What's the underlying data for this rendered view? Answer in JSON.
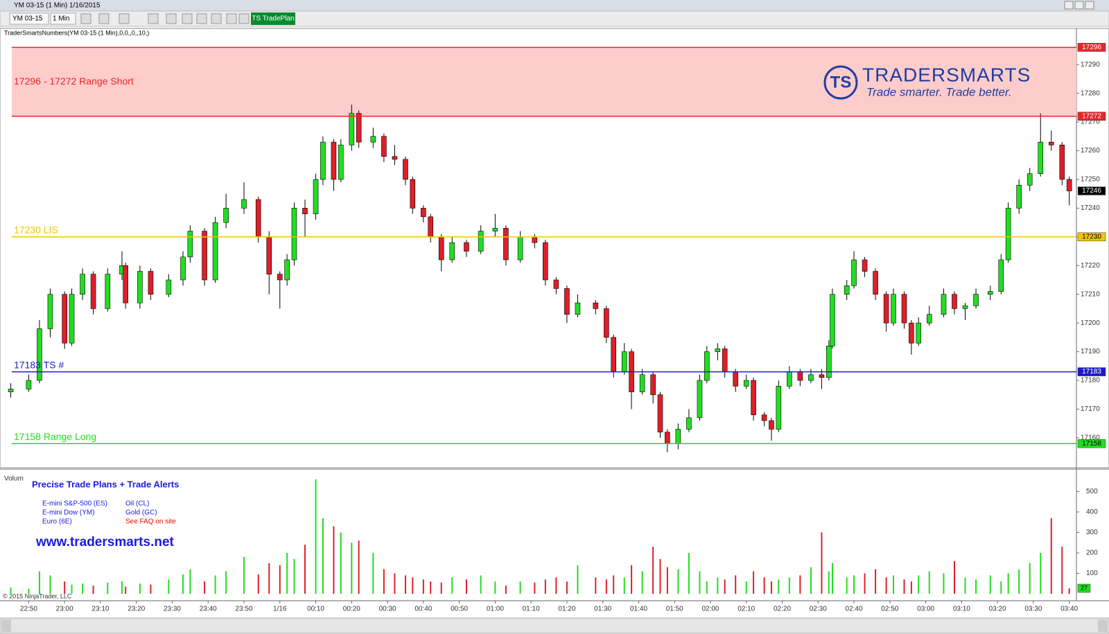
{
  "window": {
    "title": "YM 03-15 (1 Min)  1/16/2015"
  },
  "toolbar": {
    "instrument": "YM 03-15",
    "interval": "1 Min",
    "plan_button": "TS TradePlan"
  },
  "indicator_label": "TraderSmartsNumbers(YM 03-15 (1 Min),0,0,,0,,10,)",
  "logo": {
    "mark": "TS",
    "name": "TRADERSMARTS",
    "tagline": "Trade smarter. Trade better."
  },
  "promo": {
    "heading": "Precise Trade Plans + Trade Alerts",
    "items": [
      "E-mini S&P-500 (ES)",
      "E-mini Dow (YM)",
      "Euro (6E)",
      "Oil (CL)",
      "Gold (GC)",
      "See FAQ on site"
    ],
    "url": "www.tradersmarts.net"
  },
  "copyright": "© 2015 NinjaTrader, LLC",
  "chart_data": {
    "type": "candlestick",
    "up_color": "#22dd22",
    "down_color": "#dd1f2a",
    "candles": [
      [
        0,
        17176,
        17179,
        17174,
        17177
      ],
      [
        5,
        17177,
        17182,
        17176,
        17180
      ],
      [
        8,
        17180,
        17201,
        17179,
        17198
      ],
      [
        11,
        17198,
        17212,
        17195,
        17210
      ],
      [
        15,
        17210,
        17211,
        17191,
        17193
      ],
      [
        17,
        17193,
        17212,
        17192,
        17210
      ],
      [
        20,
        17210,
        17219,
        17208,
        17217
      ],
      [
        23,
        17217,
        17218,
        17203,
        17205
      ],
      [
        27,
        17205,
        17219,
        17204,
        17217
      ],
      [
        31,
        17217,
        17225,
        17215,
        17220
      ],
      [
        32,
        17220,
        17221,
        17205,
        17207
      ],
      [
        36,
        17207,
        17220,
        17205,
        17218
      ],
      [
        39,
        17218,
        17219,
        17208,
        17210
      ],
      [
        44,
        17210,
        17217,
        17209,
        17215
      ],
      [
        48,
        17215,
        17225,
        17213,
        17223
      ],
      [
        50,
        17223,
        17234,
        17221,
        17232
      ],
      [
        54,
        17232,
        17233,
        17213,
        17215
      ],
      [
        57,
        17215,
        17237,
        17214,
        17235
      ],
      [
        60,
        17235,
        17245,
        17233,
        17240
      ],
      [
        65,
        17240,
        17249,
        17238,
        17243
      ],
      [
        69,
        17243,
        17244,
        17228,
        17230
      ],
      [
        72,
        17230,
        17232,
        17210,
        17217
      ],
      [
        75,
        17217,
        17218,
        17205,
        17215
      ],
      [
        77,
        17215,
        17224,
        17213,
        17222
      ],
      [
        79,
        17222,
        17242,
        17220,
        17240
      ],
      [
        82,
        17240,
        17243,
        17230,
        17238
      ],
      [
        85,
        17238,
        17252,
        17236,
        17250
      ],
      [
        87,
        17250,
        17265,
        17248,
        17263
      ],
      [
        90,
        17263,
        17264,
        17246,
        17250
      ],
      [
        92,
        17250,
        17264,
        17249,
        17262
      ],
      [
        95,
        17262,
        17276,
        17260,
        17273
      ],
      [
        97,
        17273,
        17274,
        17261,
        17263
      ],
      [
        101,
        17263,
        17268,
        17261,
        17265
      ],
      [
        104,
        17265,
        17266,
        17256,
        17258
      ],
      [
        107,
        17258,
        17262,
        17255,
        17257
      ],
      [
        110,
        17257,
        17258,
        17248,
        17250
      ],
      [
        112,
        17250,
        17251,
        17238,
        17240
      ],
      [
        115,
        17240,
        17241,
        17235,
        17237
      ],
      [
        117,
        17237,
        17238,
        17228,
        17230
      ],
      [
        120,
        17230,
        17231,
        17218,
        17222
      ],
      [
        123,
        17222,
        17230,
        17221,
        17228
      ],
      [
        127,
        17228,
        17229,
        17223,
        17225
      ],
      [
        131,
        17225,
        17234,
        17224,
        17232
      ],
      [
        135,
        17232,
        17238,
        17230,
        17233
      ],
      [
        138,
        17233,
        17234,
        17220,
        17222
      ],
      [
        142,
        17222,
        17232,
        17221,
        17230
      ],
      [
        146,
        17230,
        17231,
        17226,
        17228
      ],
      [
        149,
        17228,
        17229,
        17213,
        17215
      ],
      [
        152,
        17215,
        17216,
        17210,
        17212
      ],
      [
        155,
        17212,
        17213,
        17200,
        17203
      ],
      [
        158,
        17203,
        17210,
        17202,
        17207
      ],
      [
        163,
        17207,
        17208,
        17203,
        17205
      ],
      [
        166,
        17205,
        17206,
        17193,
        17195
      ],
      [
        168,
        17195,
        17196,
        17181,
        17183
      ],
      [
        171,
        17183,
        17193,
        17182,
        17190
      ],
      [
        173,
        17190,
        17191,
        17170,
        17176
      ],
      [
        176,
        17176,
        17184,
        17175,
        17182
      ],
      [
        179,
        17182,
        17183,
        17172,
        17175
      ],
      [
        181,
        17175,
        17176,
        17160,
        17162
      ],
      [
        183,
        17162,
        17163,
        17155,
        17158
      ],
      [
        186,
        17158,
        17165,
        17156,
        17163
      ],
      [
        189,
        17163,
        17170,
        17162,
        17167
      ],
      [
        192,
        17167,
        17182,
        17166,
        17180
      ],
      [
        194,
        17180,
        17192,
        17179,
        17190
      ],
      [
        197,
        17190,
        17193,
        17187,
        17191
      ],
      [
        199,
        17191,
        17192,
        17181,
        17183
      ],
      [
        202,
        17183,
        17184,
        17176,
        17178
      ],
      [
        205,
        17178,
        17182,
        17177,
        17180
      ],
      [
        207,
        17180,
        17181,
        17166,
        17168
      ],
      [
        210,
        17168,
        17169,
        17164,
        17166
      ],
      [
        212,
        17166,
        17167,
        17159,
        17163
      ],
      [
        214,
        17163,
        17180,
        17162,
        17178
      ],
      [
        217,
        17178,
        17185,
        17177,
        17183
      ],
      [
        220,
        17183,
        17184,
        17178,
        17180
      ],
      [
        223,
        17180,
        17184,
        17179,
        17182
      ],
      [
        226,
        17182,
        17184,
        17177,
        17181
      ],
      [
        228,
        17181,
        17194,
        17180,
        17192
      ],
      [
        229,
        17192,
        17212,
        17191,
        17210
      ],
      [
        233,
        17210,
        17215,
        17208,
        17213
      ],
      [
        235,
        17213,
        17225,
        17212,
        17222
      ],
      [
        238,
        17222,
        17223,
        17216,
        17218
      ],
      [
        241,
        17218,
        17219,
        17208,
        17210
      ],
      [
        244,
        17210,
        17211,
        17197,
        17200
      ],
      [
        246,
        17200,
        17212,
        17199,
        17210
      ],
      [
        249,
        17210,
        17211,
        17198,
        17200
      ],
      [
        251,
        17200,
        17201,
        17189,
        17193
      ],
      [
        253,
        17193,
        17202,
        17192,
        17200
      ],
      [
        256,
        17200,
        17206,
        17199,
        17203
      ],
      [
        260,
        17203,
        17212,
        17202,
        17210
      ],
      [
        263,
        17210,
        17211,
        17203,
        17205
      ],
      [
        266,
        17205,
        17207,
        17201,
        17206
      ],
      [
        269,
        17206,
        17212,
        17205,
        17210
      ],
      [
        273,
        17210,
        17213,
        17208,
        17211
      ],
      [
        276,
        17211,
        17224,
        17210,
        17222
      ],
      [
        278,
        17222,
        17242,
        17221,
        17240
      ],
      [
        281,
        17240,
        17250,
        17238,
        17248
      ],
      [
        284,
        17248,
        17254,
        17246,
        17252
      ],
      [
        287,
        17252,
        17273,
        17251,
        17263
      ],
      [
        290,
        17263,
        17267,
        17260,
        17262
      ],
      [
        293,
        17262,
        17263,
        17248,
        17250
      ],
      [
        295,
        17250,
        17251,
        17241,
        17246
      ]
    ],
    "volume_label": "Volum",
    "volume": [
      30,
      25,
      110,
      90,
      60,
      45,
      50,
      40,
      55,
      60,
      35,
      50,
      45,
      70,
      95,
      120,
      60,
      90,
      110,
      180,
      95,
      150,
      140,
      200,
      170,
      240,
      560,
      370,
      330,
      300,
      250,
      260,
      200,
      120,
      100,
      90,
      80,
      70,
      60,
      55,
      80,
      70,
      90,
      60,
      40,
      60,
      55,
      70,
      80,
      60,
      140,
      80,
      70,
      90,
      80,
      140,
      110,
      230,
      170,
      130,
      120,
      200,
      110,
      60,
      80,
      70,
      90,
      60,
      110,
      80,
      60,
      70,
      80,
      90,
      130,
      300,
      110,
      150,
      80,
      90,
      100,
      120,
      80,
      90,
      70,
      60,
      90,
      110,
      100,
      160,
      80,
      70,
      90,
      60,
      100,
      120,
      150,
      200,
      370,
      230,
      27
    ],
    "levels": [
      {
        "value": 17296,
        "color": "#e8262a"
      },
      {
        "value": 17272,
        "color": "#e8262a",
        "label": "17296 - 17272 Range Short"
      },
      {
        "value": 17230,
        "color": "#f2c500",
        "label": "17230 LIS"
      },
      {
        "value": 17183,
        "color": "#1c1ccc",
        "label": "17183 TS #"
      },
      {
        "value": 17158,
        "color": "#22dd22",
        "label": "17158 Range Long"
      }
    ],
    "zone_color": "#ffcccc",
    "xlim": [
      -3,
      297
    ],
    "xticks": [
      {
        "value": 5,
        "label": "22:50"
      },
      {
        "value": 15,
        "label": "23:00"
      },
      {
        "value": 25,
        "label": "23:10"
      },
      {
        "value": 35,
        "label": "23:20"
      },
      {
        "value": 45,
        "label": "23:30"
      },
      {
        "value": 55,
        "label": "23:40"
      },
      {
        "value": 65,
        "label": "23:50"
      },
      {
        "value": 75,
        "label": "1/16"
      },
      {
        "value": 85,
        "label": "00:10"
      },
      {
        "value": 95,
        "label": "00:20"
      },
      {
        "value": 105,
        "label": "00:30"
      },
      {
        "value": 115,
        "label": "00:40"
      },
      {
        "value": 125,
        "label": "00:50"
      },
      {
        "value": 135,
        "label": "01:00"
      },
      {
        "value": 145,
        "label": "01:10"
      },
      {
        "value": 155,
        "label": "01:20"
      },
      {
        "value": 165,
        "label": "01:30"
      },
      {
        "value": 175,
        "label": "01:40"
      },
      {
        "value": 185,
        "label": "01:50"
      },
      {
        "value": 195,
        "label": "02:00"
      },
      {
        "value": 205,
        "label": "02:10"
      },
      {
        "value": 215,
        "label": "02:20"
      },
      {
        "value": 225,
        "label": "02:30"
      },
      {
        "value": 235,
        "label": "02:40"
      },
      {
        "value": 245,
        "label": "02:50"
      },
      {
        "value": 255,
        "label": "03:00"
      },
      {
        "value": 265,
        "label": "03:10"
      },
      {
        "value": 275,
        "label": "03:20"
      },
      {
        "value": 285,
        "label": "03:30"
      },
      {
        "value": 295,
        "label": "03:40"
      }
    ],
    "ylim": [
      17149.6,
      17302.6
    ],
    "yticks": [
      17160,
      17170,
      17180,
      17190,
      17200,
      17210,
      17220,
      17230,
      17240,
      17250,
      17260,
      17270,
      17280,
      17290
    ],
    "y2lim": [
      -34,
      603
    ],
    "y2ticks": [
      100,
      200,
      300,
      400,
      500
    ]
  }
}
